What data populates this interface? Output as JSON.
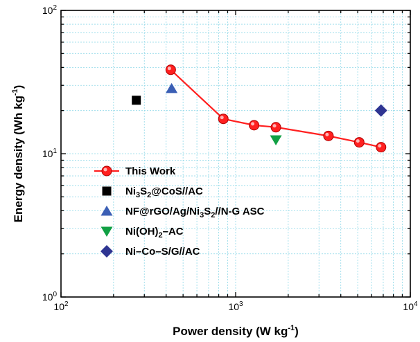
{
  "chart_data": {
    "type": "scatter",
    "xlabel": {
      "text": "Power density (W kg",
      "sup": "-1",
      "tail": ")"
    },
    "ylabel": {
      "text": "Energy density (Wh kg",
      "sup": "-1",
      "tail": ")"
    },
    "xscale": "log",
    "yscale": "log",
    "xlim": [
      100,
      10000
    ],
    "ylim": [
      1,
      100
    ],
    "grid": true,
    "legend_position": "lower-left",
    "x_ticks": [
      {
        "base": "10",
        "exp": "2"
      },
      {
        "base": "10",
        "exp": "3"
      },
      {
        "base": "10",
        "exp": "4"
      }
    ],
    "y_ticks": [
      {
        "base": "10",
        "exp": "0"
      },
      {
        "base": "10",
        "exp": "1"
      },
      {
        "base": "10",
        "exp": "2"
      }
    ],
    "series": [
      {
        "name": [
          {
            "t": "This Work"
          }
        ],
        "marker": "circle",
        "color": "#ff2020",
        "line": true,
        "points": [
          {
            "x": 425,
            "y": 38.5
          },
          {
            "x": 850,
            "y": 17.5
          },
          {
            "x": 1275,
            "y": 15.8
          },
          {
            "x": 1700,
            "y": 15.3
          },
          {
            "x": 3400,
            "y": 13.3
          },
          {
            "x": 5100,
            "y": 12.0
          },
          {
            "x": 6800,
            "y": 11.1
          }
        ]
      },
      {
        "name": [
          {
            "t": "Ni"
          },
          {
            "t": "3",
            "sub": true
          },
          {
            "t": "S"
          },
          {
            "t": "2",
            "sub": true
          },
          {
            "t": "@CoS//AC"
          }
        ],
        "marker": "square",
        "color": "#000000",
        "line": false,
        "points": [
          {
            "x": 270,
            "y": 23.6
          }
        ]
      },
      {
        "name": [
          {
            "t": "NF@rGO/Ag/Ni"
          },
          {
            "t": "3",
            "sub": true
          },
          {
            "t": "S"
          },
          {
            "t": "2",
            "sub": true
          },
          {
            "t": "//N-G ASC"
          }
        ],
        "marker": "triangle-up",
        "color": "#3b5fb5",
        "line": false,
        "points": [
          {
            "x": 430,
            "y": 28.5
          }
        ]
      },
      {
        "name": [
          {
            "t": "Ni(OH)"
          },
          {
            "t": "2",
            "sub": true
          },
          {
            "t": "–AC"
          }
        ],
        "marker": "triangle-down",
        "color": "#11a044",
        "line": false,
        "points": [
          {
            "x": 1700,
            "y": 12.5
          }
        ]
      },
      {
        "name": [
          {
            "t": "Ni–Co–S/G//AC"
          }
        ],
        "marker": "diamond",
        "color": "#2e3592",
        "line": false,
        "points": [
          {
            "x": 6800,
            "y": 20.0
          }
        ]
      }
    ]
  }
}
